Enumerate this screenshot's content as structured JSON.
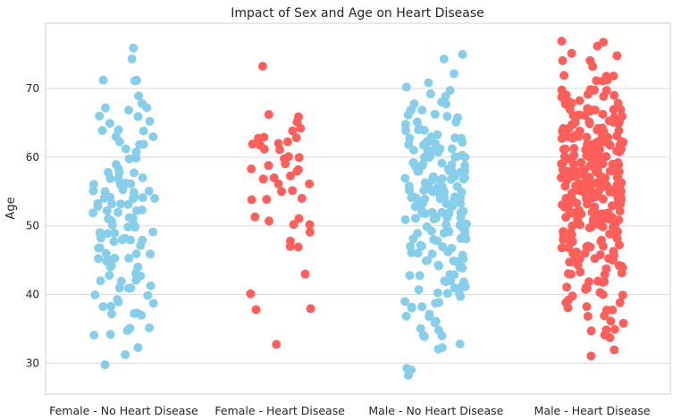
{
  "chart_data": {
    "type": "scatter",
    "title": "Impact of Sex and Age on Heart Disease",
    "xlabel": "",
    "ylabel": "Age",
    "ylim": [
      25.5,
      79.5
    ],
    "yticks": [
      30,
      40,
      50,
      60,
      70
    ],
    "grid": "horizontal",
    "legend": "none",
    "categories": [
      "Female - No Heart Disease",
      "Female - Heart Disease",
      "Male - No Heart Disease",
      "Male - Heart Disease"
    ],
    "colors": [
      "#87ceeb",
      "#ff5f5a",
      "#87ceeb",
      "#ff5f5a"
    ],
    "series": [
      {
        "values": [
          76,
          74,
          71,
          71,
          71,
          69,
          68,
          67,
          67,
          67,
          66,
          66,
          65,
          65,
          64,
          64,
          64,
          63,
          63,
          62,
          62,
          62,
          61,
          61,
          60,
          60,
          60,
          59,
          58,
          58,
          58,
          58,
          57,
          57,
          57,
          56,
          56,
          56,
          56,
          55,
          55,
          55,
          55,
          55,
          54,
          54,
          54,
          54,
          54,
          54,
          53,
          53,
          53,
          53,
          53,
          52,
          52,
          52,
          52,
          52,
          51,
          51,
          51,
          51,
          50,
          50,
          50,
          50,
          50,
          50,
          49,
          49,
          49,
          49,
          48,
          48,
          48,
          48,
          48,
          48,
          47,
          47,
          47,
          46,
          46,
          46,
          45,
          45,
          45,
          45,
          45,
          44,
          44,
          44,
          43,
          43,
          43,
          42,
          42,
          42,
          41,
          41,
          41,
          41,
          41,
          40,
          40,
          39,
          39,
          39,
          38,
          38,
          37,
          37,
          37,
          37,
          35,
          35,
          35,
          34,
          34,
          32,
          31,
          30
        ]
      },
      {
        "values": [
          73,
          66,
          66,
          65,
          64,
          64,
          63,
          63,
          63,
          62,
          62,
          62,
          62,
          61,
          61,
          60,
          60,
          60,
          59,
          59,
          58,
          58,
          58,
          57,
          57,
          57,
          56,
          56,
          55,
          55,
          54,
          54,
          54,
          51,
          51,
          51,
          50,
          50,
          49,
          48,
          47,
          47,
          43,
          40,
          38,
          38,
          33
        ]
      },
      {
        "values": [
          75,
          74,
          72,
          71,
          70,
          70,
          69,
          69,
          68,
          68,
          68,
          67,
          67,
          67,
          66,
          66,
          66,
          66,
          65,
          65,
          65,
          64,
          64,
          64,
          64,
          63,
          63,
          63,
          63,
          63,
          62,
          62,
          62,
          62,
          62,
          62,
          61,
          61,
          61,
          61,
          61,
          61,
          60,
          60,
          60,
          60,
          60,
          60,
          60,
          59,
          59,
          59,
          59,
          59,
          59,
          59,
          59,
          58,
          58,
          58,
          58,
          58,
          58,
          58,
          58,
          57,
          57,
          57,
          57,
          57,
          57,
          57,
          57,
          57,
          56,
          56,
          56,
          56,
          56,
          56,
          56,
          56,
          56,
          55,
          55,
          55,
          55,
          55,
          55,
          55,
          55,
          55,
          54,
          54,
          54,
          54,
          54,
          54,
          54,
          54,
          54,
          54,
          53,
          53,
          53,
          53,
          53,
          53,
          53,
          53,
          52,
          52,
          52,
          52,
          52,
          52,
          52,
          52,
          51,
          51,
          51,
          51,
          51,
          51,
          51,
          50,
          50,
          50,
          50,
          50,
          50,
          49,
          49,
          49,
          49,
          49,
          49,
          48,
          48,
          48,
          48,
          48,
          48,
          47,
          47,
          47,
          47,
          47,
          46,
          46,
          46,
          46,
          46,
          45,
          45,
          45,
          45,
          45,
          44,
          44,
          44,
          44,
          44,
          43,
          43,
          43,
          43,
          42,
          42,
          42,
          42,
          41,
          41,
          41,
          41,
          40,
          40,
          40,
          40,
          39,
          39,
          39,
          38,
          38,
          38,
          37,
          37,
          37,
          36,
          36,
          35,
          35,
          34,
          34,
          34,
          33,
          32,
          32,
          29,
          29,
          29,
          28
        ]
      },
      {
        "values": [
          77,
          77,
          76,
          75,
          75,
          74,
          74,
          73,
          72,
          72,
          72,
          71,
          71,
          71,
          70,
          70,
          70,
          70,
          70,
          69,
          69,
          69,
          69,
          69,
          68,
          68,
          68,
          68,
          68,
          68,
          67,
          67,
          67,
          67,
          67,
          67,
          67,
          66,
          66,
          66,
          66,
          66,
          66,
          66,
          66,
          65,
          65,
          65,
          65,
          65,
          65,
          65,
          65,
          65,
          64,
          64,
          64,
          64,
          64,
          64,
          64,
          64,
          64,
          64,
          63,
          63,
          63,
          63,
          63,
          63,
          63,
          63,
          63,
          63,
          63,
          62,
          62,
          62,
          62,
          62,
          62,
          62,
          62,
          62,
          62,
          62,
          62,
          61,
          61,
          61,
          61,
          61,
          61,
          61,
          61,
          61,
          61,
          61,
          61,
          60,
          60,
          60,
          60,
          60,
          60,
          60,
          60,
          60,
          60,
          60,
          60,
          60,
          59,
          59,
          59,
          59,
          59,
          59,
          59,
          59,
          59,
          59,
          59,
          59,
          59,
          58,
          58,
          58,
          58,
          58,
          58,
          58,
          58,
          58,
          58,
          58,
          58,
          58,
          58,
          57,
          57,
          57,
          57,
          57,
          57,
          57,
          57,
          57,
          57,
          57,
          57,
          57,
          57,
          57,
          56,
          56,
          56,
          56,
          56,
          56,
          56,
          56,
          56,
          56,
          56,
          56,
          56,
          56,
          55,
          55,
          55,
          55,
          55,
          55,
          55,
          55,
          55,
          55,
          55,
          55,
          55,
          55,
          54,
          54,
          54,
          54,
          54,
          54,
          54,
          54,
          54,
          54,
          54,
          54,
          54,
          54,
          53,
          53,
          53,
          53,
          53,
          53,
          53,
          53,
          53,
          53,
          53,
          53,
          52,
          52,
          52,
          52,
          52,
          52,
          52,
          52,
          52,
          52,
          52,
          52,
          51,
          51,
          51,
          51,
          51,
          51,
          51,
          51,
          51,
          51,
          51,
          50,
          50,
          50,
          50,
          50,
          50,
          50,
          50,
          50,
          50,
          49,
          49,
          49,
          49,
          49,
          49,
          49,
          49,
          49,
          48,
          48,
          48,
          48,
          48,
          48,
          48,
          48,
          47,
          47,
          47,
          47,
          47,
          47,
          47,
          46,
          46,
          46,
          46,
          46,
          46,
          45,
          45,
          45,
          45,
          45,
          45,
          44,
          44,
          44,
          44,
          44,
          43,
          43,
          43,
          43,
          43,
          42,
          42,
          42,
          42,
          41,
          41,
          41,
          41,
          40,
          40,
          40,
          40,
          39,
          39,
          39,
          38,
          38,
          38,
          38,
          37,
          37,
          36,
          36,
          35,
          35,
          35,
          34,
          34,
          32,
          31
        ]
      }
    ]
  }
}
